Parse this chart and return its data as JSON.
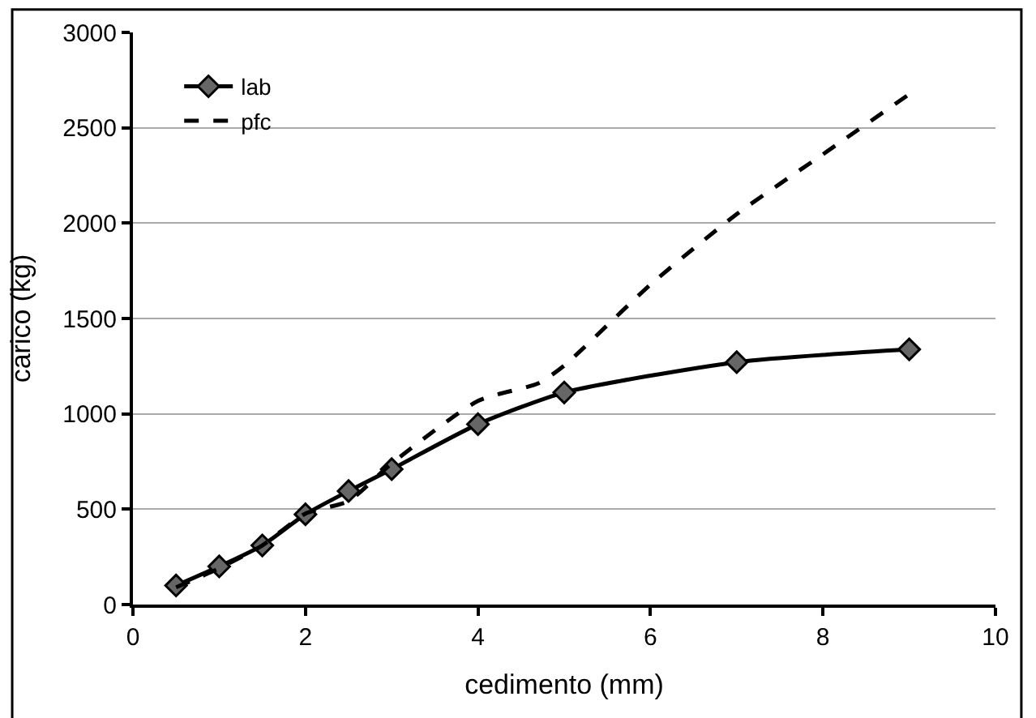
{
  "chart_data": {
    "type": "line",
    "xlabel": "cedimento (mm)",
    "ylabel": "carico (kg)",
    "xlim": [
      0,
      10
    ],
    "xticks": [
      0,
      2,
      4,
      6,
      8,
      10
    ],
    "ylim": [
      0,
      3000
    ],
    "yticks": [
      0,
      500,
      1000,
      1500,
      2000,
      2500,
      3000
    ],
    "grid": "y",
    "legend": "top left",
    "series": [
      {
        "name": "lab",
        "color": "#000000",
        "marker": "diamond",
        "line_style": "solid",
        "x": [
          0.5,
          1,
          1.5,
          2,
          2.5,
          3,
          4,
          5,
          7,
          9
        ],
        "values": [
          100,
          200,
          310,
          473,
          595,
          710,
          946,
          1112,
          1271,
          1338
        ]
      },
      {
        "name": "pfc",
        "color": "#000000",
        "marker": "none",
        "line_style": "dashed",
        "x": [
          0.5,
          1,
          1.5,
          2,
          2.5,
          3,
          4,
          4.7,
          5,
          6,
          7,
          8,
          9
        ],
        "values": [
          90,
          190,
          310,
          477,
          543,
          740,
          1068,
          1160,
          1253,
          1678,
          2047,
          2361,
          2676
        ]
      }
    ]
  }
}
